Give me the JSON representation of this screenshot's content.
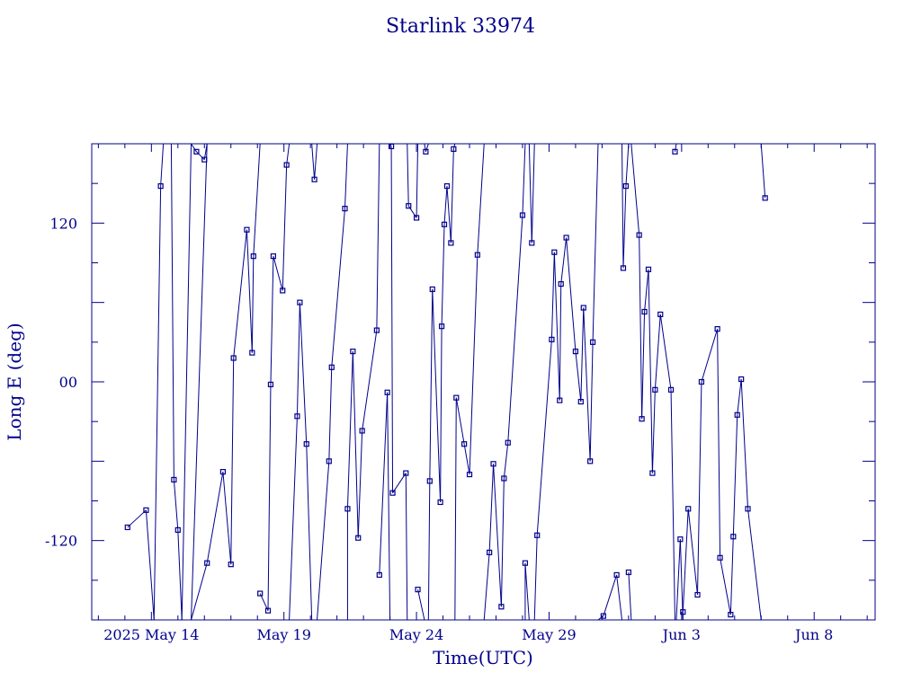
{
  "chart_data": {
    "type": "line",
    "title": "Starlink 33974",
    "xlabel": "Time(UTC)",
    "ylabel": "Long E (deg)",
    "x_unit": "days after 2025 May 14",
    "xlim": [
      -2.25,
      27.3
    ],
    "ylim": [
      -180,
      180
    ],
    "x_ticks": [
      {
        "value": 0,
        "label": "2025 May 14"
      },
      {
        "value": 5,
        "label": "May 19"
      },
      {
        "value": 10,
        "label": "May 24"
      },
      {
        "value": 15,
        "label": "May 29"
      },
      {
        "value": 20,
        "label": "Jun  3"
      },
      {
        "value": 25,
        "label": "Jun  8"
      }
    ],
    "y_ticks": [
      {
        "value": 120,
        "label": "120"
      },
      {
        "value": 0,
        "label": "00"
      },
      {
        "value": -120,
        "label": "-120"
      }
    ],
    "grid": false,
    "color": "#00008b",
    "wrap_longitude": true,
    "series": [
      {
        "points": [
          [
            -0.9,
            -110
          ],
          [
            -0.2,
            -97
          ],
          [
            0.1,
            -180
          ],
          [
            0.35,
            148
          ],
          [
            0.45,
            180
          ],
          [
            0.75,
            180
          ],
          [
            0.85,
            -74
          ],
          [
            1.0,
            -112
          ],
          [
            1.15,
            -180
          ],
          [
            1.5,
            180
          ],
          [
            1.7,
            174
          ],
          [
            2.0,
            168
          ],
          [
            2.1,
            180
          ],
          [
            1.5,
            -180
          ],
          [
            2.1,
            -137
          ],
          [
            2.7,
            -68
          ],
          [
            3.0,
            -138
          ],
          [
            3.1,
            18
          ],
          [
            3.6,
            115
          ],
          [
            3.8,
            22
          ],
          [
            3.85,
            95
          ],
          [
            4.1,
            180
          ],
          [
            4.1,
            -160
          ],
          [
            4.4,
            -173
          ],
          [
            4.5,
            -2
          ],
          [
            4.6,
            95
          ],
          [
            4.95,
            69
          ],
          [
            5.1,
            164
          ],
          [
            5.2,
            180
          ],
          [
            5.2,
            -180
          ],
          [
            5.5,
            -26
          ],
          [
            5.6,
            60
          ],
          [
            5.85,
            -47
          ],
          [
            6.05,
            -180
          ],
          [
            6.05,
            180
          ],
          [
            6.15,
            153
          ],
          [
            6.25,
            180
          ],
          [
            6.25,
            -180
          ],
          [
            6.7,
            -60
          ],
          [
            6.8,
            11
          ],
          [
            7.3,
            131
          ],
          [
            7.4,
            180
          ],
          [
            7.4,
            -180
          ],
          [
            7.4,
            -96
          ],
          [
            7.6,
            23
          ],
          [
            7.8,
            -118
          ],
          [
            7.95,
            -37
          ],
          [
            8.5,
            39
          ],
          [
            8.6,
            180
          ],
          [
            8.6,
            -146
          ],
          [
            8.9,
            -8
          ],
          [
            9.0,
            -180
          ],
          [
            9.0,
            180
          ],
          [
            9.05,
            178
          ],
          [
            9.1,
            -84
          ],
          [
            9.6,
            -69
          ],
          [
            9.65,
            -180
          ],
          [
            9.65,
            180
          ],
          [
            9.7,
            133
          ],
          [
            10.0,
            124
          ],
          [
            10.05,
            180
          ],
          [
            10.05,
            -157
          ],
          [
            10.3,
            -180
          ],
          [
            10.3,
            180
          ],
          [
            10.35,
            174
          ],
          [
            10.45,
            180
          ],
          [
            10.45,
            -180
          ],
          [
            10.5,
            -75
          ],
          [
            10.6,
            70
          ],
          [
            10.9,
            -91
          ],
          [
            10.95,
            42
          ],
          [
            11.05,
            119
          ],
          [
            11.15,
            148
          ],
          [
            11.3,
            105
          ],
          [
            11.4,
            176
          ],
          [
            11.45,
            180
          ],
          [
            11.45,
            -180
          ],
          [
            11.5,
            -12
          ],
          [
            11.8,
            -47
          ],
          [
            12.0,
            -70
          ],
          [
            12.3,
            96
          ],
          [
            12.55,
            180
          ],
          [
            12.55,
            -180
          ],
          [
            12.75,
            -129
          ],
          [
            12.9,
            -62
          ],
          [
            13.2,
            -170
          ],
          [
            13.3,
            -73
          ],
          [
            13.45,
            -46
          ],
          [
            14.0,
            126
          ],
          [
            14.1,
            180
          ],
          [
            14.1,
            -180
          ],
          [
            14.1,
            -137
          ],
          [
            14.25,
            -180
          ],
          [
            14.25,
            180
          ],
          [
            14.35,
            105
          ],
          [
            14.45,
            180
          ],
          [
            14.45,
            -180
          ],
          [
            14.55,
            -116
          ],
          [
            15.1,
            32
          ],
          [
            15.2,
            98
          ],
          [
            15.4,
            -14
          ],
          [
            15.45,
            74
          ],
          [
            15.65,
            109
          ],
          [
            16.0,
            23
          ],
          [
            16.2,
            -15
          ],
          [
            16.3,
            56
          ],
          [
            16.55,
            -60
          ],
          [
            16.65,
            30
          ],
          [
            16.85,
            180
          ],
          [
            16.85,
            -180
          ],
          [
            17.05,
            -177
          ],
          [
            17.55,
            -146
          ],
          [
            17.75,
            -180
          ],
          [
            17.75,
            180
          ],
          [
            17.8,
            86
          ],
          [
            17.9,
            148
          ],
          [
            18.0,
            180
          ],
          [
            18.0,
            -144
          ],
          [
            18.1,
            -180
          ],
          [
            18.1,
            180
          ],
          [
            18.4,
            111
          ],
          [
            18.5,
            -28
          ],
          [
            18.6,
            53
          ],
          [
            18.75,
            85
          ],
          [
            18.9,
            -69
          ],
          [
            19.0,
            -6
          ],
          [
            19.2,
            51
          ],
          [
            19.6,
            -6
          ],
          [
            19.75,
            -180
          ],
          [
            19.75,
            174
          ],
          [
            19.8,
            180
          ],
          [
            19.8,
            -180
          ],
          [
            19.95,
            -119
          ],
          [
            20.05,
            -180
          ],
          [
            20.05,
            -174
          ],
          [
            20.25,
            -96
          ],
          [
            20.6,
            -161
          ],
          [
            20.75,
            0
          ],
          [
            21.35,
            40
          ],
          [
            21.45,
            -133
          ],
          [
            21.85,
            -176
          ],
          [
            21.95,
            -117
          ],
          [
            22.1,
            -25
          ],
          [
            22.25,
            2
          ],
          [
            22.5,
            -96
          ],
          [
            23.0,
            -180
          ],
          [
            23.0,
            180
          ],
          [
            23.15,
            139
          ]
        ]
      }
    ]
  }
}
